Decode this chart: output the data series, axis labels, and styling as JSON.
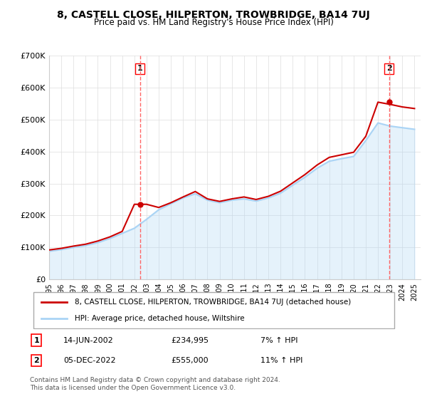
{
  "title": "8, CASTELL CLOSE, HILPERTON, TROWBRIDGE, BA14 7UJ",
  "subtitle": "Price paid vs. HM Land Registry's House Price Index (HPI)",
  "ylabel": "",
  "ylim": [
    0,
    700000
  ],
  "yticks": [
    0,
    100000,
    200000,
    300000,
    400000,
    500000,
    600000,
    700000
  ],
  "ytick_labels": [
    "£0",
    "£100K",
    "£200K",
    "£300K",
    "£400K",
    "£500K",
    "£600K",
    "£700K"
  ],
  "sale1_date": "14-JUN-2002",
  "sale1_price": 234995,
  "sale1_hpi": "7% ↑ HPI",
  "sale2_date": "05-DEC-2022",
  "sale2_price": 555000,
  "sale2_hpi": "11% ↑ HPI",
  "legend_line1": "8, CASTELL CLOSE, HILPERTON, TROWBRIDGE, BA14 7UJ (detached house)",
  "legend_line2": "HPI: Average price, detached house, Wiltshire",
  "footnote": "Contains HM Land Registry data © Crown copyright and database right 2024.\nThis data is licensed under the Open Government Licence v3.0.",
  "hpi_color": "#aad4f5",
  "price_color": "#cc0000",
  "marker1_color": "#cc0000",
  "marker2_color": "#cc0000",
  "vline_color": "#ff6666",
  "grid_color": "#dddddd",
  "background_color": "#ffffff",
  "years": [
    1995,
    1996,
    1997,
    1998,
    1999,
    2000,
    2001,
    2002,
    2003,
    2004,
    2005,
    2006,
    2007,
    2008,
    2009,
    2010,
    2011,
    2012,
    2013,
    2014,
    2015,
    2016,
    2017,
    2018,
    2019,
    2020,
    2021,
    2022,
    2023,
    2024,
    2025
  ],
  "hpi_values": [
    88000,
    93000,
    100000,
    106000,
    115000,
    128000,
    144000,
    160000,
    188000,
    218000,
    237000,
    255000,
    268000,
    248000,
    240000,
    248000,
    252000,
    245000,
    255000,
    270000,
    295000,
    320000,
    348000,
    370000,
    378000,
    385000,
    435000,
    490000,
    480000,
    475000,
    470000
  ],
  "price_values": [
    92000,
    97000,
    104000,
    110000,
    120000,
    133000,
    150000,
    235000,
    235000,
    225000,
    240000,
    258000,
    275000,
    252000,
    244000,
    252000,
    258000,
    250000,
    260000,
    276000,
    302000,
    328000,
    358000,
    382000,
    390000,
    398000,
    448000,
    555000,
    548000,
    540000,
    535000
  ],
  "sale1_year": 2002.45,
  "sale2_year": 2022.92
}
